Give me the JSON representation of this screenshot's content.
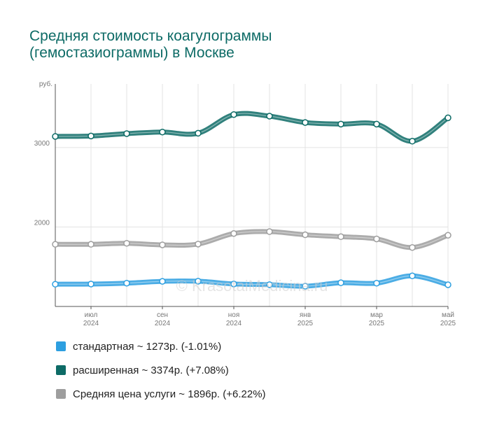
{
  "title_lines": [
    "Средняя стоимость коагулограммы",
    "(гемостазиограммы) в Москве"
  ],
  "watermark": "© KrasotaiMedicina.ru",
  "chart_data": {
    "type": "line",
    "ylabel": "руб.",
    "ylim": [
      1000,
      3800
    ],
    "yticks": [
      2000,
      3000
    ],
    "grid": true,
    "x": [
      "2024-06",
      "2024-07",
      "2024-08",
      "2024-09",
      "2024-10",
      "2024-11",
      "2024-12",
      "2025-01",
      "2025-02",
      "2025-03",
      "2025-04",
      "2025-05"
    ],
    "tick_labels": [
      {
        "index": 1,
        "month": "июл",
        "year": "2024"
      },
      {
        "index": 3,
        "month": "сен",
        "year": "2024"
      },
      {
        "index": 5,
        "month": "ноя",
        "year": "2024"
      },
      {
        "index": 7,
        "month": "янв",
        "year": "2025"
      },
      {
        "index": 9,
        "month": "мар",
        "year": "2025"
      },
      {
        "index": 11,
        "month": "май",
        "year": "2025"
      }
    ],
    "series": [
      {
        "name": "стандартная",
        "color": "#2d9fe0",
        "values": [
          1280,
          1282,
          1293,
          1316,
          1318,
          1283,
          1274,
          1255,
          1298,
          1293,
          1385,
          1273
        ]
      },
      {
        "name": "расширенная",
        "color": "#0d6b66",
        "values": [
          3140,
          3145,
          3175,
          3195,
          3180,
          3415,
          3395,
          3315,
          3295,
          3295,
          3080,
          3374
        ]
      },
      {
        "name": "Средняя цена услуги",
        "color": "#9e9e9e",
        "values": [
          1782,
          1782,
          1795,
          1775,
          1785,
          1918,
          1942,
          1902,
          1878,
          1850,
          1742,
          1896
        ]
      }
    ]
  },
  "legend": [
    {
      "label": "стандартная ~ 1273р. (-1.01%)",
      "color": "#2d9fe0"
    },
    {
      "label": "расширенная ~ 3374р. (+7.08%)",
      "color": "#0d6b66"
    },
    {
      "label": "Средняя цена услуги ~ 1896р. (+6.22%)",
      "color": "#9e9e9e"
    }
  ]
}
